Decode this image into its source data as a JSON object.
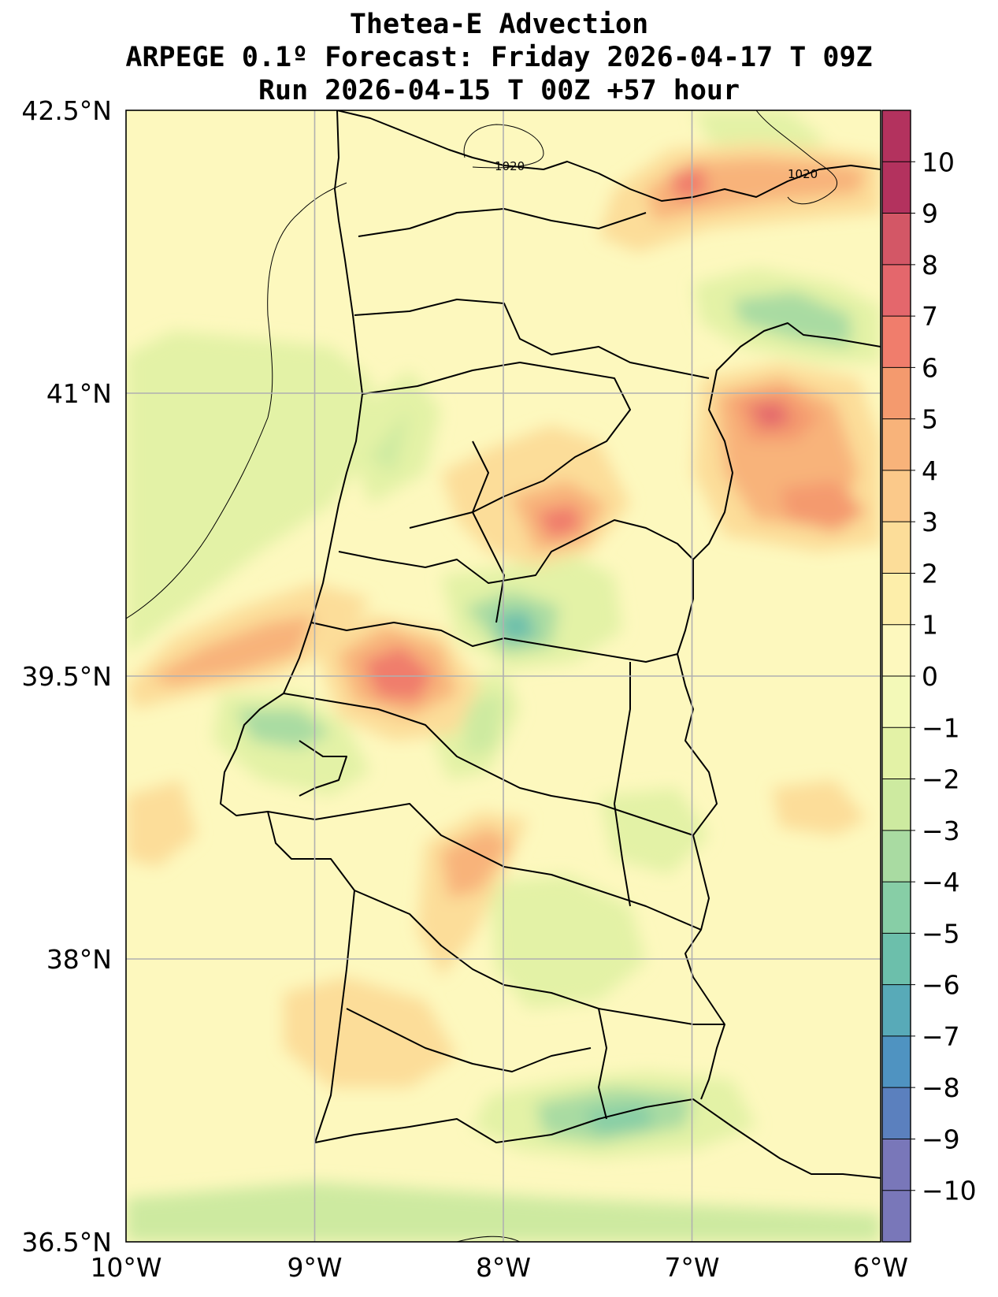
{
  "title": {
    "line1": "Thetea-E Advection",
    "line2": "ARPEGE 0.1º Forecast: Friday 2026-04-17 T 09Z",
    "line3": "Run 2026-04-15 T 00Z +57 hour"
  },
  "map": {
    "region": "Portugal",
    "lon_range": [
      -10,
      -6
    ],
    "lat_range": [
      36.5,
      42.5
    ],
    "lon_ticks": [
      "10°W",
      "9°W",
      "8°W",
      "7°W",
      "6°W"
    ],
    "lat_ticks": [
      "42.5°N",
      "41°N",
      "39.5°N",
      "38°N",
      "36.5°N"
    ],
    "isobar_labels": [
      "1020",
      "1020"
    ],
    "background_color": "#fdf8be"
  },
  "colorbar": {
    "ticks": [
      "10",
      "9",
      "8",
      "7",
      "6",
      "5",
      "4",
      "3",
      "2",
      "1",
      "0",
      "−1",
      "−2",
      "−3",
      "−4",
      "−5",
      "−6",
      "−7",
      "−8",
      "−9",
      "−10"
    ],
    "colors": [
      "#b3325e",
      "#d35766",
      "#e4676c",
      "#f07d6c",
      "#f49a6e",
      "#f8b37a",
      "#fbc98a",
      "#fcdd99",
      "#fdeeaa",
      "#fdf8be",
      "#f3f9b8",
      "#e3f2a6",
      "#cdeaa0",
      "#a9dba2",
      "#87cea6",
      "#6cbfab",
      "#58aab8",
      "#4f93c1",
      "#5b80be",
      "#7977b9"
    ]
  }
}
